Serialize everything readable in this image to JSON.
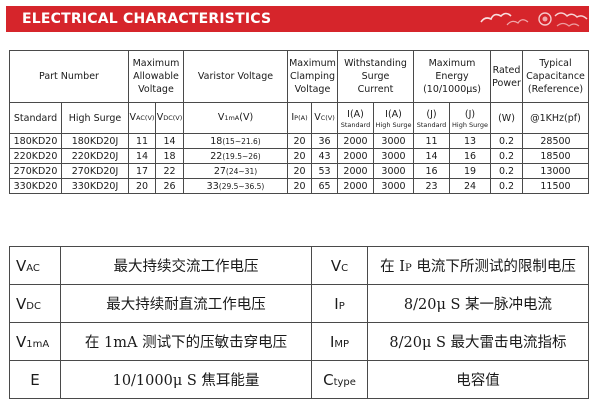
{
  "banner": {
    "title": "ELECTRICAL CHARACTERISTICS",
    "accent": "#d6252b"
  },
  "spec_table": {
    "head": {
      "part_number": "Part Number",
      "max_voltage": [
        "Maximum",
        "Allowable",
        "Voltage"
      ],
      "varistor_voltage": "Varistor Voltage",
      "clamping": [
        "Maximum",
        "Clamping",
        "Voltage"
      ],
      "withstanding": [
        "Withstanding",
        "Surge",
        "Current"
      ],
      "energy": [
        "Maximum",
        "Energy",
        "(10/1000μs)"
      ],
      "rated_power": [
        "Rated",
        "Power"
      ],
      "capacitance": [
        "Typical",
        "Capacitance",
        "(Reference)"
      ]
    },
    "sub": {
      "standard": "Standard",
      "high_surge": "High Surge",
      "vac_base": "V",
      "vac_sub": "AC",
      "vac_unit": "(V)",
      "vdc_base": "V",
      "vdc_sub": "DC",
      "vdc_unit": "(V)",
      "v1ma_base": "V",
      "v1ma_sub": "1mA",
      "v1ma_unit": "(V)",
      "ip_base": "I",
      "ip_sub": "P",
      "ip_unit": "(A)",
      "vc_base": "V",
      "vc_sub": "C",
      "vc_unit": "(V)",
      "ia_std": "I(A)",
      "ia_std_label": "Standard",
      "ia_hs": "I(A)",
      "ia_hs_label": "High Surge",
      "j_std": "(J)",
      "j_std_label": "Standard",
      "j_hs": "(J)",
      "j_hs_label": "High Surge",
      "w": "(W)",
      "khz": "@1KHz(pf)"
    },
    "rows": [
      {
        "standard": "180KD20",
        "high_surge": "180KD20J",
        "vac": "11",
        "vdc": "14",
        "v1ma_main": "18",
        "v1ma_range": "(15~21.6)",
        "ip": "20",
        "vc": "36",
        "i_std": "2000",
        "i_hs": "3000",
        "e_std": "11",
        "e_hs": "13",
        "power": "0.2",
        "cap": "28500"
      },
      {
        "standard": "220KD20",
        "high_surge": "220KD20J",
        "vac": "14",
        "vdc": "18",
        "v1ma_main": "22",
        "v1ma_range": "(19.5~26)",
        "ip": "20",
        "vc": "43",
        "i_std": "2000",
        "i_hs": "3000",
        "e_std": "14",
        "e_hs": "16",
        "power": "0.2",
        "cap": "18500"
      },
      {
        "standard": "270KD20",
        "high_surge": "270KD20J",
        "vac": "17",
        "vdc": "22",
        "v1ma_main": "27",
        "v1ma_range": "(24~31)",
        "ip": "20",
        "vc": "53",
        "i_std": "2000",
        "i_hs": "3000",
        "e_std": "16",
        "e_hs": "19",
        "power": "0.2",
        "cap": "13000"
      },
      {
        "standard": "330KD20",
        "high_surge": "330KD20J",
        "vac": "20",
        "vdc": "26",
        "v1ma_main": "33",
        "v1ma_range": "(29.5~36.5)",
        "ip": "20",
        "vc": "65",
        "i_std": "2000",
        "i_hs": "3000",
        "e_std": "23",
        "e_hs": "24",
        "power": "0.2",
        "cap": "11500"
      }
    ]
  },
  "legend": [
    {
      "sym_base": "V",
      "sym_sub": "AC",
      "desc": "最大持续交流工作电压",
      "sym2_base": "V",
      "sym2_sub": "C",
      "desc2_pre": "在 I",
      "desc2_sub": "P",
      "desc2_post": " 电流下所测试的限制电压"
    },
    {
      "sym_base": "V",
      "sym_sub": "DC",
      "desc": "最大持续耐直流工作电压",
      "sym2_base": "I",
      "sym2_sub": "P",
      "desc2": "8/20μ S 某一脉冲电流"
    },
    {
      "sym_base": "V",
      "sym_sub": "1mA",
      "desc": "在 1mA 测试下的压敏击穿电压",
      "sym2_base": "I",
      "sym2_sub": "MP",
      "desc2": "8/20μ S 最大雷击电流指标"
    },
    {
      "sym_base": "E",
      "desc": "10/1000μ S 焦耳能量",
      "sym2_base": "C",
      "sym2_sub": "type",
      "desc2": "电容值"
    }
  ]
}
